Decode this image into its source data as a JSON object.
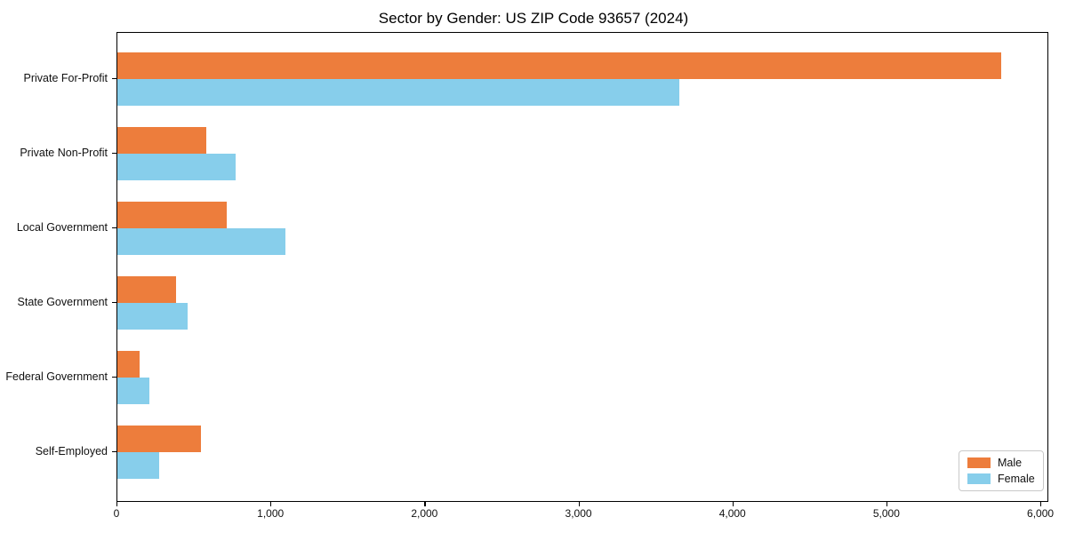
{
  "chart_data": {
    "type": "bar",
    "orientation": "horizontal",
    "title": "Sector by Gender: US ZIP Code 93657 (2024)",
    "categories": [
      "Private For-Profit",
      "Private Non-Profit",
      "Local Government",
      "State Government",
      "Federal Government",
      "Self-Employed"
    ],
    "series": [
      {
        "name": "Male",
        "color": "#ED7D3C",
        "values": [
          5740,
          580,
          710,
          380,
          145,
          540
        ]
      },
      {
        "name": "Female",
        "color": "#87CEEB",
        "values": [
          3650,
          765,
          1090,
          455,
          210,
          270
        ]
      }
    ],
    "xlim": [
      0,
      6040
    ],
    "x_ticks": [
      0,
      1000,
      2000,
      3000,
      4000,
      5000,
      6000
    ],
    "x_tick_labels": [
      "0",
      "1,000",
      "2,000",
      "3,000",
      "4,000",
      "5,000",
      "6,000"
    ],
    "xlabel": "",
    "ylabel": "",
    "grid": false,
    "legend_position": "lower right",
    "colors": {
      "frame": "#000000",
      "background": "#ffffff",
      "text": "#111111"
    }
  }
}
